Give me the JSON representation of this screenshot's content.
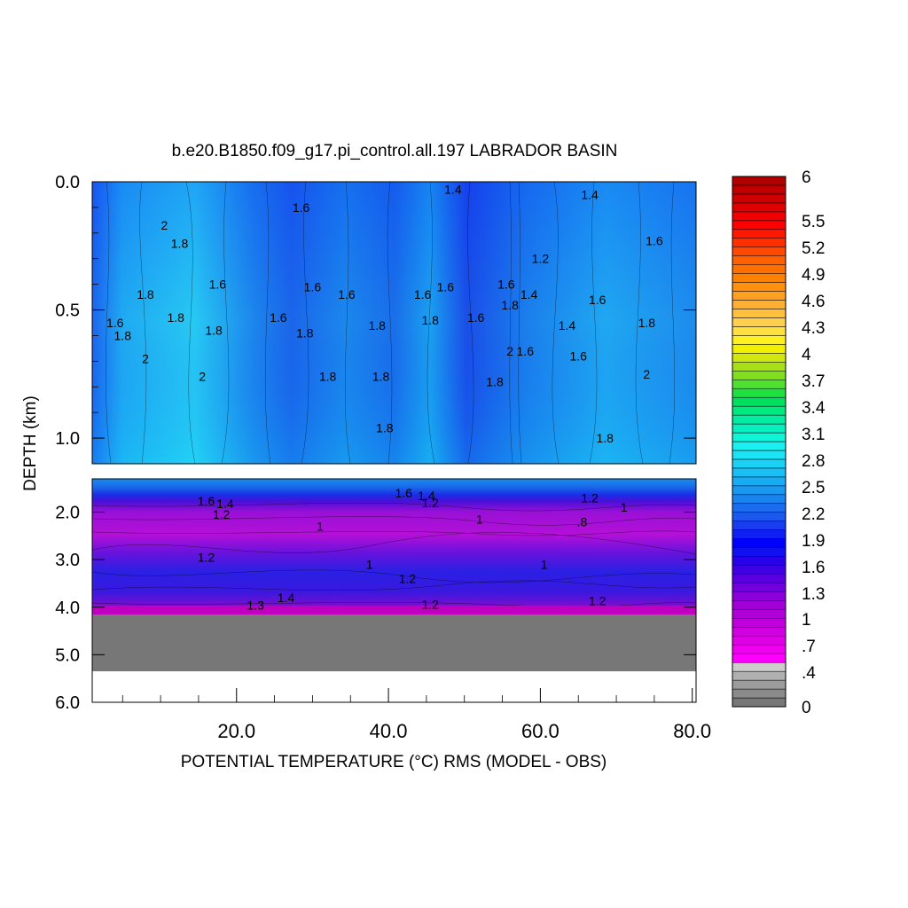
{
  "chart_data": {
    "type": "heatmap",
    "title": "b.e20.B1850.f09_g17.pi_control.all.197 LABRADOR BASIN",
    "xlabel": "POTENTIAL TEMPERATURE (°C) RMS (MODEL - OBS)",
    "ylabel": "DEPTH (km)",
    "x_range": [
      1,
      80.5
    ],
    "x_ticks": [
      "20.0",
      "40.0",
      "60.0",
      "80.0"
    ],
    "panels": [
      {
        "name": "upper",
        "depth_range": [
          0.0,
          1.1
        ],
        "y_ticks": [
          "0.0",
          "0.5",
          "1.0"
        ],
        "contour_labels": [
          {
            "text": "1.4",
            "x": 48.5,
            "y": 0.03
          },
          {
            "text": "1.4",
            "x": 66.5,
            "y": 0.05
          },
          {
            "text": "1.6",
            "x": 28.5,
            "y": 0.1
          },
          {
            "text": "2",
            "x": 10.5,
            "y": 0.17
          },
          {
            "text": "1.8",
            "x": 12.5,
            "y": 0.24
          },
          {
            "text": "1.2",
            "x": 60.0,
            "y": 0.3
          },
          {
            "text": "1.6",
            "x": 75.0,
            "y": 0.23
          },
          {
            "text": "1.6",
            "x": 17.5,
            "y": 0.4
          },
          {
            "text": "1.6",
            "x": 30.0,
            "y": 0.41
          },
          {
            "text": "1.6",
            "x": 34.5,
            "y": 0.44
          },
          {
            "text": "1.6",
            "x": 44.5,
            "y": 0.44
          },
          {
            "text": "1.6",
            "x": 47.5,
            "y": 0.41
          },
          {
            "text": "1.6",
            "x": 55.5,
            "y": 0.4
          },
          {
            "text": "1.4",
            "x": 58.5,
            "y": 0.44
          },
          {
            "text": "1.6",
            "x": 67.5,
            "y": 0.46
          },
          {
            "text": "1.8",
            "x": 8.0,
            "y": 0.44
          },
          {
            "text": "1.8",
            "x": 56.0,
            "y": 0.48
          },
          {
            "text": "1.6",
            "x": 4.0,
            "y": 0.55
          },
          {
            "text": "1.8",
            "x": 12.0,
            "y": 0.53
          },
          {
            "text": "1.6",
            "x": 25.5,
            "y": 0.53
          },
          {
            "text": "1.8",
            "x": 45.5,
            "y": 0.54
          },
          {
            "text": "1.6",
            "x": 51.5,
            "y": 0.53
          },
          {
            "text": "1.8",
            "x": 38.5,
            "y": 0.56
          },
          {
            "text": "1.8",
            "x": 74.0,
            "y": 0.55
          },
          {
            "text": "1.8",
            "x": 5.0,
            "y": 0.6
          },
          {
            "text": "1.8",
            "x": 17.0,
            "y": 0.58
          },
          {
            "text": "1.8",
            "x": 29.0,
            "y": 0.59
          },
          {
            "text": "1.4",
            "x": 63.5,
            "y": 0.56
          },
          {
            "text": "2",
            "x": 56.0,
            "y": 0.66
          },
          {
            "text": "1.6",
            "x": 58.0,
            "y": 0.66
          },
          {
            "text": "2",
            "x": 8.0,
            "y": 0.69
          },
          {
            "text": "1.6",
            "x": 65.0,
            "y": 0.68
          },
          {
            "text": "2",
            "x": 15.5,
            "y": 0.76
          },
          {
            "text": "1.8",
            "x": 32.0,
            "y": 0.76
          },
          {
            "text": "1.8",
            "x": 39.0,
            "y": 0.76
          },
          {
            "text": "2",
            "x": 74.0,
            "y": 0.75
          },
          {
            "text": "1.8",
            "x": 54.0,
            "y": 0.78
          },
          {
            "text": "1.8",
            "x": 39.5,
            "y": 0.96
          },
          {
            "text": "1.8",
            "x": 68.5,
            "y": 1.0
          }
        ]
      },
      {
        "name": "lower",
        "depth_range": [
          1.3,
          6.0
        ],
        "y_ticks": [
          "2.0",
          "3.0",
          "4.0",
          "5.0",
          "6.0"
        ],
        "bottom_depth": 5.35,
        "contour_labels": [
          {
            "text": "1.6",
            "x": 16.0,
            "y": 1.77
          },
          {
            "text": "1.4",
            "x": 18.5,
            "y": 1.82
          },
          {
            "text": "1.2",
            "x": 18.0,
            "y": 2.05
          },
          {
            "text": "1.6",
            "x": 42.0,
            "y": 1.6
          },
          {
            "text": "1.4",
            "x": 45.0,
            "y": 1.65
          },
          {
            "text": "1.2",
            "x": 45.5,
            "y": 1.8
          },
          {
            "text": "1.2",
            "x": 66.5,
            "y": 1.7
          },
          {
            "text": "1",
            "x": 71.0,
            "y": 1.9
          },
          {
            "text": "1",
            "x": 31.0,
            "y": 2.3
          },
          {
            "text": "1",
            "x": 52.0,
            "y": 2.15
          },
          {
            "text": ".8",
            "x": 65.5,
            "y": 2.2
          },
          {
            "text": "1.2",
            "x": 16.0,
            "y": 2.95
          },
          {
            "text": "1",
            "x": 37.5,
            "y": 3.1
          },
          {
            "text": "1",
            "x": 60.5,
            "y": 3.1
          },
          {
            "text": "1.2",
            "x": 42.5,
            "y": 3.4
          },
          {
            "text": "1.4",
            "x": 26.5,
            "y": 3.8
          },
          {
            "text": "1.3",
            "x": 22.5,
            "y": 3.96
          },
          {
            "text": "1.2",
            "x": 45.5,
            "y": 3.94
          },
          {
            "text": "1.2",
            "x": 67.5,
            "y": 3.86
          }
        ]
      }
    ],
    "colorbar": {
      "range": [
        0,
        6
      ],
      "tick_labels": [
        "6",
        "5.5",
        "5.2",
        "4.9",
        "4.6",
        "4.3",
        "4",
        "3.7",
        "3.4",
        "3.1",
        "2.8",
        "2.5",
        "2.2",
        "1.9",
        "1.6",
        "1.3",
        "1",
        ".7",
        ".4",
        "0"
      ]
    },
    "colors": {
      "land": "#777777",
      "contour_line": "#000000"
    }
  }
}
